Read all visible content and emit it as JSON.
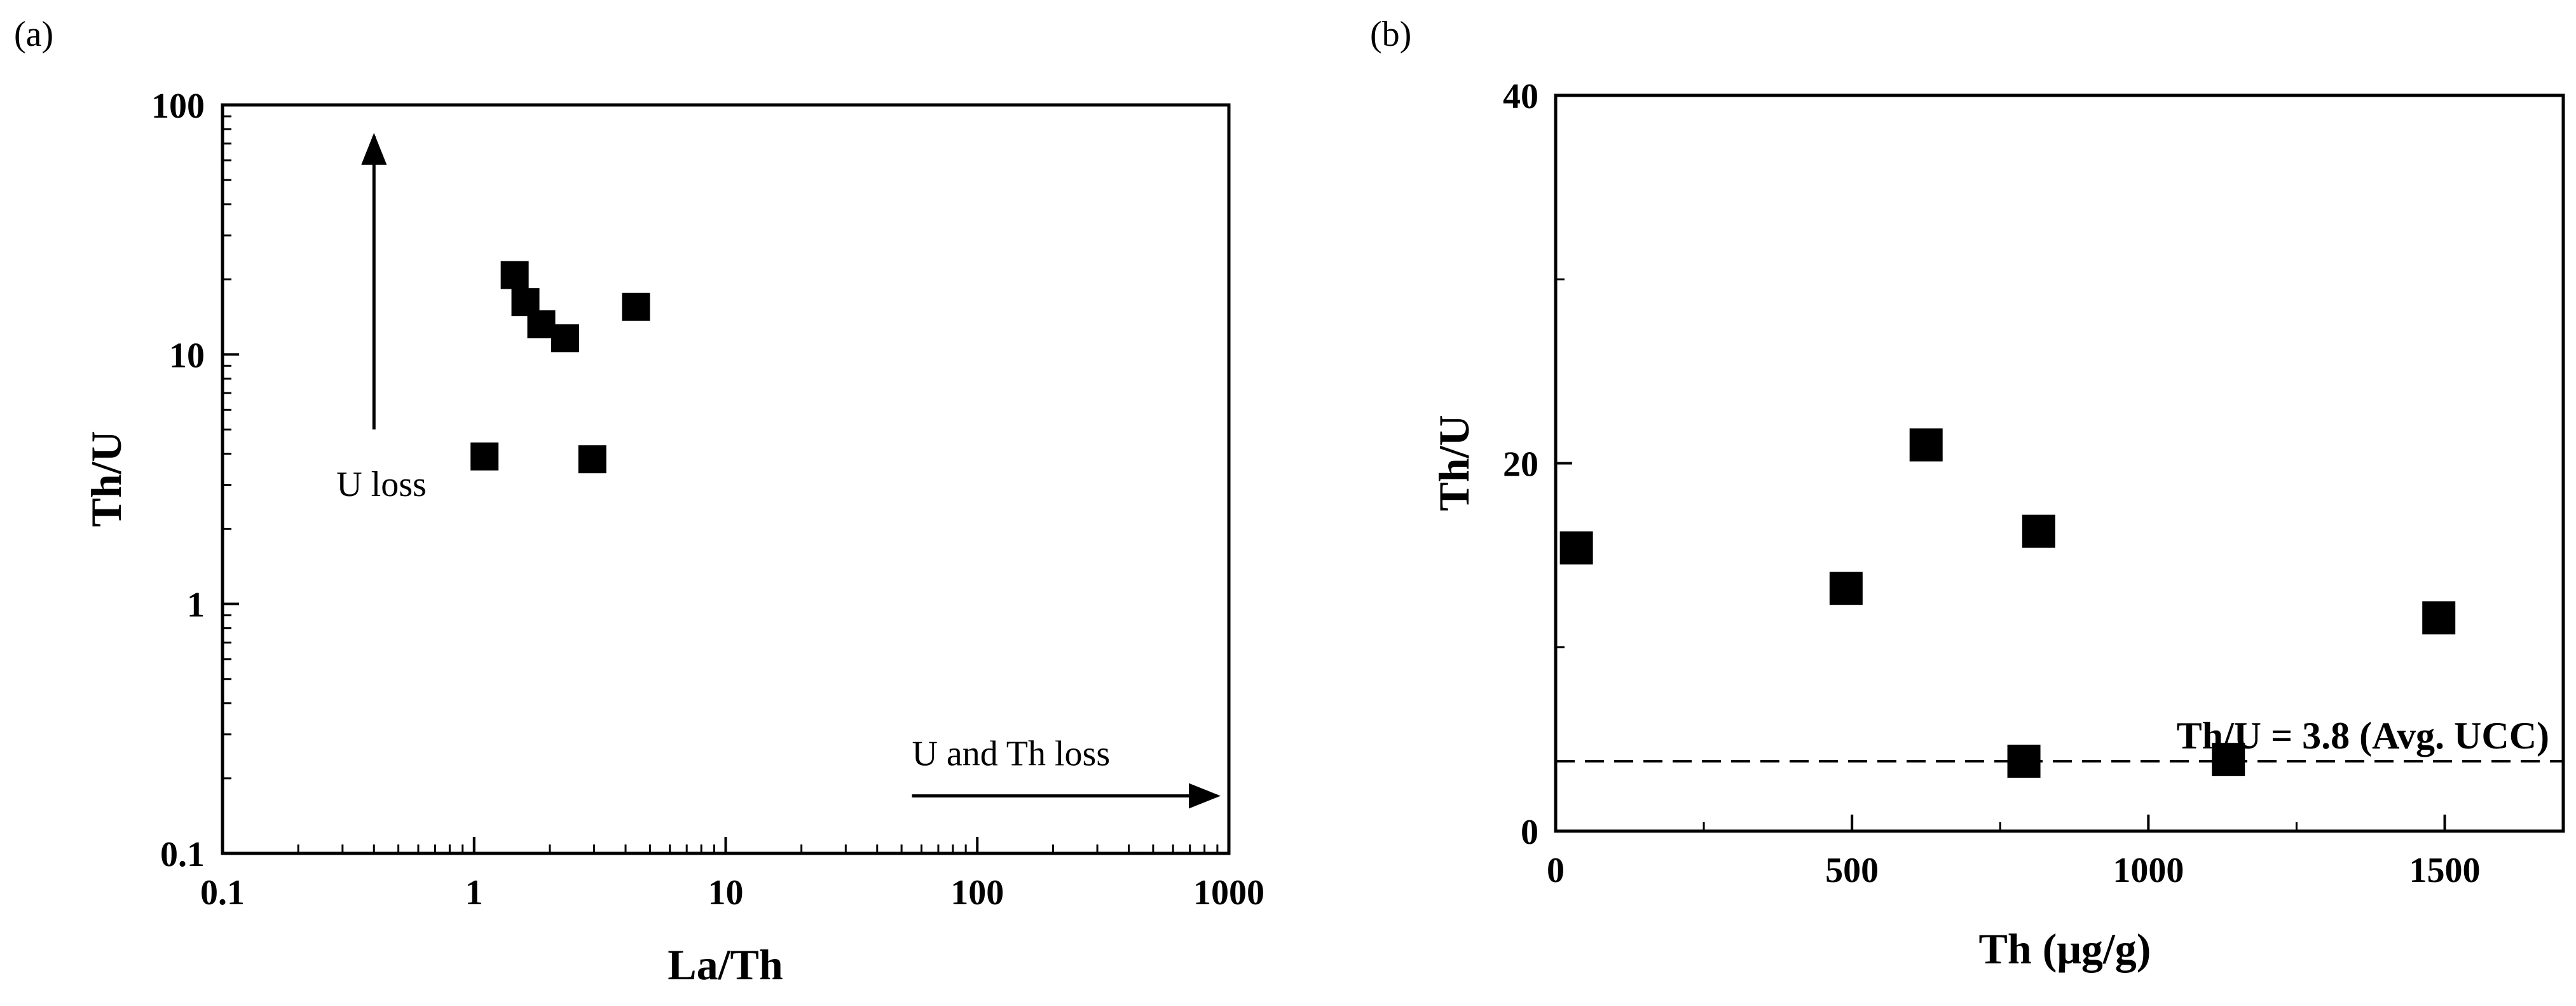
{
  "chart_data": [
    {
      "panel_label": "(a)",
      "type": "scatter",
      "xlabel": "La/Th",
      "ylabel": "Th/U",
      "xscale": "log",
      "yscale": "log",
      "xlim": [
        0.1,
        1000
      ],
      "ylim": [
        0.1,
        100
      ],
      "xticks": [
        {
          "value": 0.1,
          "label": "0.1"
        },
        {
          "value": 1,
          "label": "1"
        },
        {
          "value": 10,
          "label": "10"
        },
        {
          "value": 100,
          "label": "100"
        },
        {
          "value": 1000,
          "label": "1000"
        }
      ],
      "yticks": [
        {
          "value": 0.1,
          "label": "0.1"
        },
        {
          "value": 1,
          "label": "1"
        },
        {
          "value": 10,
          "label": "10"
        },
        {
          "value": 100,
          "label": "100"
        }
      ],
      "grid": false,
      "marker": "square",
      "marker_color": "#000000",
      "points": [
        {
          "x": 1.45,
          "y": 20.8
        },
        {
          "x": 1.6,
          "y": 16.2
        },
        {
          "x": 1.85,
          "y": 13.2
        },
        {
          "x": 2.3,
          "y": 11.6
        },
        {
          "x": 4.4,
          "y": 15.5
        },
        {
          "x": 1.1,
          "y": 3.9
        },
        {
          "x": 2.95,
          "y": 3.8
        }
      ],
      "annotations": [
        {
          "text": "U loss",
          "arrow": "up",
          "arrow_x": 0.4,
          "arrow_y_from": 5,
          "arrow_y_to": 75
        },
        {
          "text": "U and Th loss",
          "arrow": "right",
          "arrow_y": 0.17,
          "arrow_x_from": 55,
          "arrow_x_to": 900
        }
      ]
    },
    {
      "panel_label": "(b)",
      "type": "scatter",
      "xlabel": "Th (μg/g)",
      "ylabel": "Th/U",
      "xlim": [
        0,
        1700
      ],
      "ylim": [
        0,
        40
      ],
      "xticks": [
        {
          "value": 0,
          "label": "0"
        },
        {
          "value": 500,
          "label": "500"
        },
        {
          "value": 1000,
          "label": "1000"
        },
        {
          "value": 1500,
          "label": "1500"
        }
      ],
      "yticks": [
        {
          "value": 0,
          "label": "0"
        },
        {
          "value": 20,
          "label": "20"
        },
        {
          "value": 40,
          "label": "40"
        }
      ],
      "grid": false,
      "marker": "square",
      "marker_color": "#000000",
      "points": [
        {
          "x": 35,
          "y": 15.4
        },
        {
          "x": 490,
          "y": 13.2
        },
        {
          "x": 625,
          "y": 21.0
        },
        {
          "x": 815,
          "y": 16.3
        },
        {
          "x": 790,
          "y": 3.8
        },
        {
          "x": 1135,
          "y": 3.9
        },
        {
          "x": 1490,
          "y": 11.6
        }
      ],
      "reference_line": {
        "y": 3.8,
        "style": "dashed",
        "label": "Th/U = 3.8 (Avg. UCC)"
      }
    }
  ]
}
